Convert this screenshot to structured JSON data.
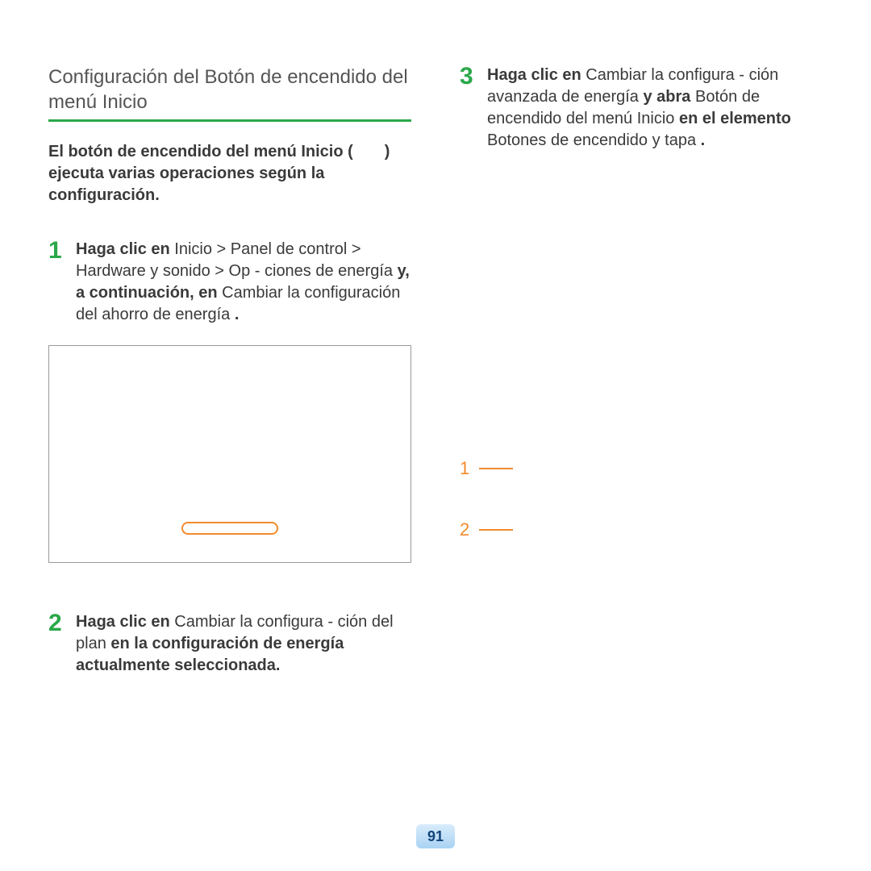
{
  "left": {
    "sectionTitle": "Configuración del Botón de encendido del menú Inicio",
    "intro": {
      "prefix": "El botón de encendido del menú Inicio (",
      "suffix": ") ejecuta varias operaciones según la configuración."
    },
    "step1": {
      "num": "1",
      "p1_bold": "Haga clic en",
      "p1_rest": " Inicio > Panel de control > Hardware y sonido > Op­ - ciones de energía ",
      "p2_bold": "y, a continuación, en",
      "p2_rest": " Cambiar la configuración del ahorro de energía ",
      "period": "."
    },
    "step2": {
      "num": "2",
      "p1_bold": "Haga clic en",
      "p1_rest": " Cambiar la configura­ - ción del plan ",
      "p2_bold": "en la configuración de energía actualmente seleccionada."
    }
  },
  "right": {
    "step3": {
      "num": "3",
      "a_bold": "Haga clic en",
      "a_rest": " Cambiar la configura­ - ción avanzada de energía ",
      "b_bold": "y abra",
      "b_rest": " Botón de encendido del menú Inicio ",
      "c_bold": "en el elemento",
      "c_rest": " Botones de encendido y tapa ",
      "period": "."
    },
    "callouts": [
      "1",
      "2"
    ]
  },
  "pageNumber": "91",
  "colors": {
    "green": "#2aa84a",
    "orange": "#f28a2e"
  }
}
